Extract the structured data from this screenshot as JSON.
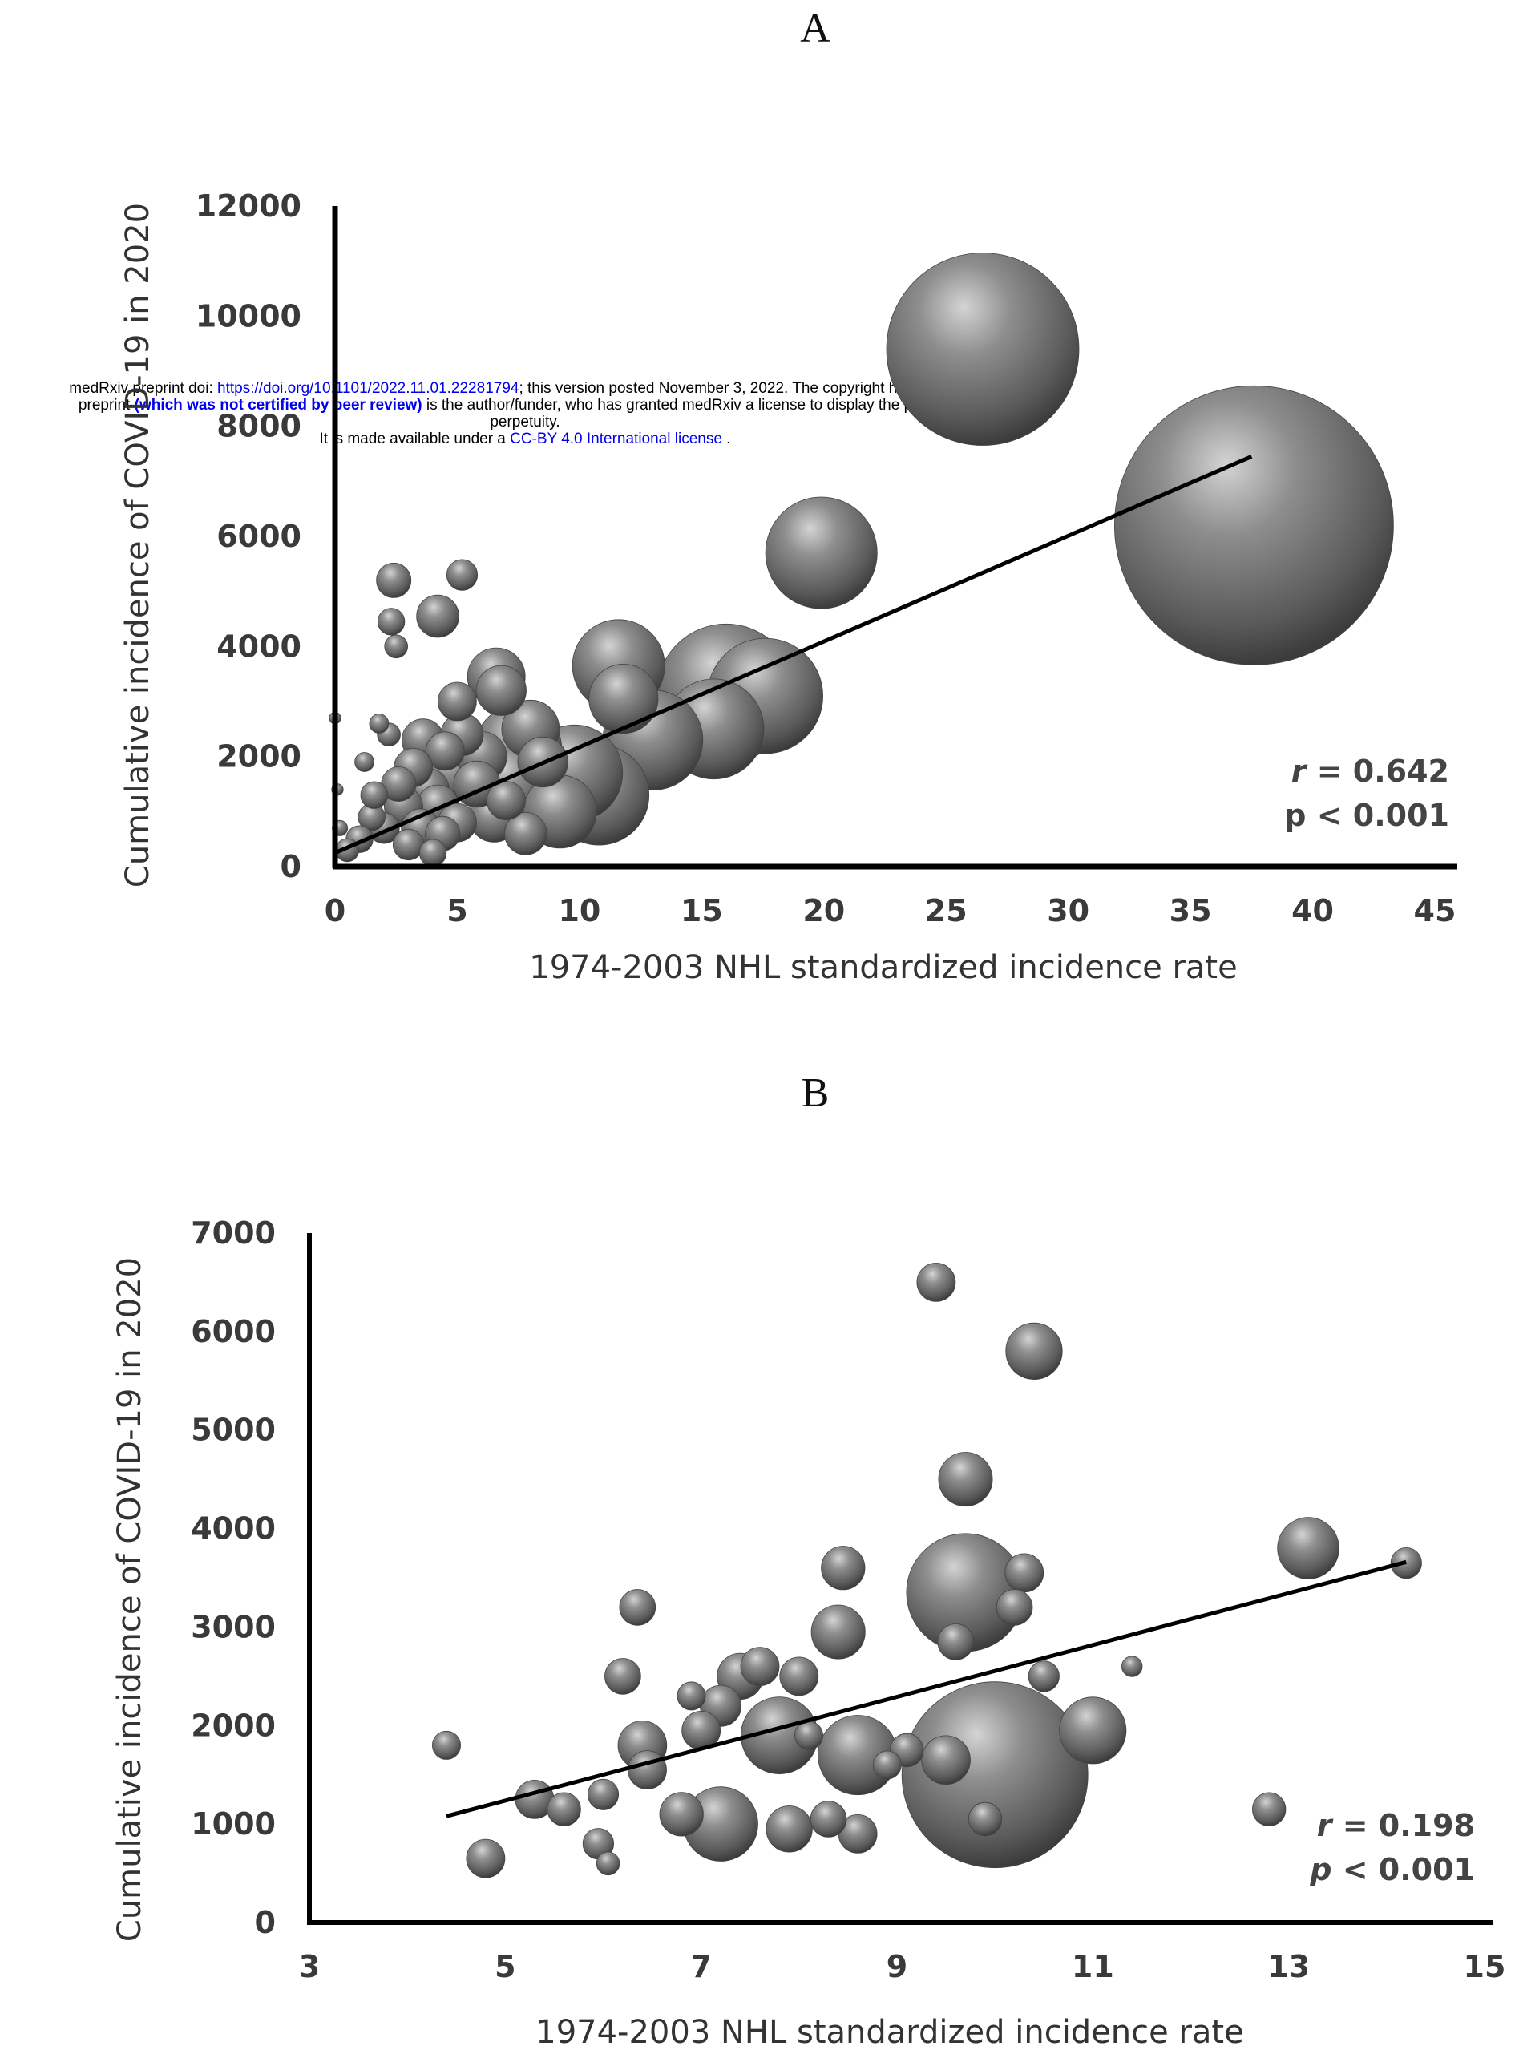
{
  "banner": {
    "line1_a": "medRxiv preprint doi: ",
    "line1_doi": "https://doi.org/10.1101/2022.11.01.22281794",
    "line1_b": "; this version posted November 3, 2022. The copyright holder for this",
    "line2_a": "preprint ",
    "line2_b": "(which was not certified by peer review)",
    "line2_c": " is the author/funder, who has granted medRxiv a license to display the preprint in",
    "line3": "perpetuity.",
    "line4_a": "It is made available under a ",
    "line4_b": "CC-BY 4.0 International license",
    "line4_c": " ."
  },
  "colors": {
    "bubble": "#6e6e6e",
    "line": "#000000"
  },
  "chart_data": [
    {
      "panel": "A",
      "type": "scatter",
      "subtype": "bubble",
      "xlabel": "1974-2003 NHL standardized incidence rate",
      "ylabel": "Cumulative incidence of COVID-19 in 2020",
      "xlim": [
        0,
        45
      ],
      "ylim": [
        0,
        12000
      ],
      "xticks": [
        "0",
        "5",
        "10",
        "15",
        "20",
        "25",
        "30",
        "35",
        "40",
        "45"
      ],
      "yticks": [
        "0",
        "2000",
        "4000",
        "6000",
        "8000",
        "10000",
        "12000"
      ],
      "grid": false,
      "stat_r_label": "r",
      "stat_r_value": " = 0.642",
      "stat_p": "p < 0.001",
      "trendline": [
        [
          0,
          250
        ],
        [
          37.5,
          7450
        ]
      ],
      "points": [
        [
          26.5,
          9400,
          1.0
        ],
        [
          37.6,
          6200,
          1.45
        ],
        [
          19.9,
          5700,
          0.58
        ],
        [
          16.0,
          3150,
          0.72
        ],
        [
          17.6,
          3100,
          0.6
        ],
        [
          15.5,
          2500,
          0.52
        ],
        [
          13.0,
          2300,
          0.52
        ],
        [
          11.6,
          3650,
          0.48
        ],
        [
          11.8,
          3050,
          0.36
        ],
        [
          10.8,
          1300,
          0.52
        ],
        [
          9.8,
          1700,
          0.5
        ],
        [
          9.2,
          1000,
          0.38
        ],
        [
          7.5,
          2150,
          0.45
        ],
        [
          7.2,
          1500,
          0.4
        ],
        [
          8.0,
          2500,
          0.3
        ],
        [
          6.6,
          3450,
          0.3
        ],
        [
          6.8,
          3200,
          0.26
        ],
        [
          5.0,
          3000,
          0.2
        ],
        [
          5.2,
          2400,
          0.22
        ],
        [
          2.4,
          5200,
          0.18
        ],
        [
          5.2,
          5300,
          0.16
        ],
        [
          4.2,
          4550,
          0.22
        ],
        [
          2.3,
          4450,
          0.14
        ],
        [
          2.5,
          4000,
          0.12
        ],
        [
          6.0,
          2000,
          0.26
        ],
        [
          5.8,
          1500,
          0.24
        ],
        [
          6.5,
          900,
          0.26
        ],
        [
          7.8,
          600,
          0.22
        ],
        [
          7.0,
          1200,
          0.2
        ],
        [
          4.5,
          2100,
          0.2
        ],
        [
          4.8,
          1700,
          0.28
        ],
        [
          3.8,
          1400,
          0.22
        ],
        [
          3.2,
          1800,
          0.2
        ],
        [
          2.8,
          1100,
          0.2
        ],
        [
          3.5,
          700,
          0.2
        ],
        [
          4.4,
          600,
          0.18
        ],
        [
          2.0,
          700,
          0.16
        ],
        [
          1.5,
          900,
          0.14
        ],
        [
          1.0,
          500,
          0.14
        ],
        [
          0.5,
          300,
          0.12
        ],
        [
          2.2,
          2400,
          0.12
        ],
        [
          1.8,
          2600,
          0.1
        ],
        [
          1.2,
          1900,
          0.1
        ],
        [
          3.0,
          400,
          0.16
        ],
        [
          4.0,
          250,
          0.14
        ],
        [
          5.0,
          800,
          0.2
        ],
        [
          3.6,
          2300,
          0.22
        ],
        [
          4.2,
          1100,
          0.22
        ],
        [
          2.6,
          1500,
          0.18
        ],
        [
          1.6,
          1300,
          0.14
        ],
        [
          0.2,
          700,
          0.08
        ],
        [
          0.0,
          2700,
          0.06
        ],
        [
          0.1,
          1400,
          0.06
        ],
        [
          8.5,
          1900,
          0.26
        ]
      ]
    },
    {
      "panel": "B",
      "type": "scatter",
      "subtype": "bubble",
      "xlabel": "1974-2003 NHL standardized incidence rate",
      "ylabel": "Cumulative incidence of COVID-19 in 2020",
      "xlim": [
        3,
        15
      ],
      "ylim": [
        0,
        7000
      ],
      "xticks": [
        "3",
        "5",
        "7",
        "9",
        "11",
        "13",
        "15"
      ],
      "yticks": [
        "0",
        "1000",
        "2000",
        "3000",
        "4000",
        "5000",
        "6000",
        "7000"
      ],
      "grid": false,
      "stat_r_label": "r",
      "stat_r_value": " = 0.198",
      "stat_p_label": "p",
      "stat_p_value": " < 0.001",
      "trendline": [
        [
          4.4,
          1080
        ],
        [
          14.2,
          3660
        ]
      ],
      "points": [
        [
          10.0,
          1500,
          1.45
        ],
        [
          9.7,
          3350,
          0.92
        ],
        [
          7.2,
          1000,
          0.58
        ],
        [
          8.6,
          1700,
          0.62
        ],
        [
          7.8,
          1900,
          0.6
        ],
        [
          11.0,
          1950,
          0.52
        ],
        [
          13.2,
          3800,
          0.48
        ],
        [
          10.4,
          5800,
          0.44
        ],
        [
          9.7,
          4500,
          0.42
        ],
        [
          8.4,
          2950,
          0.42
        ],
        [
          8.45,
          3600,
          0.34
        ],
        [
          6.4,
          1800,
          0.38
        ],
        [
          6.45,
          1550,
          0.3
        ],
        [
          7.4,
          2500,
          0.36
        ],
        [
          7.2,
          2200,
          0.32
        ],
        [
          7.0,
          1950,
          0.3
        ],
        [
          6.8,
          1100,
          0.34
        ],
        [
          7.9,
          950,
          0.36
        ],
        [
          8.3,
          1050,
          0.28
        ],
        [
          8.6,
          900,
          0.3
        ],
        [
          9.5,
          1650,
          0.38
        ],
        [
          9.1,
          1750,
          0.26
        ],
        [
          9.4,
          6500,
          0.3
        ],
        [
          10.3,
          3550,
          0.3
        ],
        [
          10.2,
          3200,
          0.28
        ],
        [
          9.6,
          2850,
          0.28
        ],
        [
          10.5,
          2500,
          0.24
        ],
        [
          11.4,
          2600,
          0.16
        ],
        [
          12.8,
          1150,
          0.26
        ],
        [
          14.2,
          3650,
          0.24
        ],
        [
          6.35,
          3200,
          0.28
        ],
        [
          6.2,
          2500,
          0.28
        ],
        [
          6.9,
          2300,
          0.22
        ],
        [
          8.0,
          2500,
          0.3
        ],
        [
          7.6,
          2600,
          0.3
        ],
        [
          8.1,
          1900,
          0.22
        ],
        [
          6.0,
          1300,
          0.24
        ],
        [
          5.6,
          1150,
          0.26
        ],
        [
          5.3,
          1250,
          0.3
        ],
        [
          5.95,
          800,
          0.24
        ],
        [
          6.05,
          600,
          0.18
        ],
        [
          4.8,
          650,
          0.3
        ],
        [
          4.4,
          1800,
          0.22
        ],
        [
          9.9,
          1050,
          0.26
        ],
        [
          8.9,
          1600,
          0.22
        ]
      ]
    }
  ]
}
